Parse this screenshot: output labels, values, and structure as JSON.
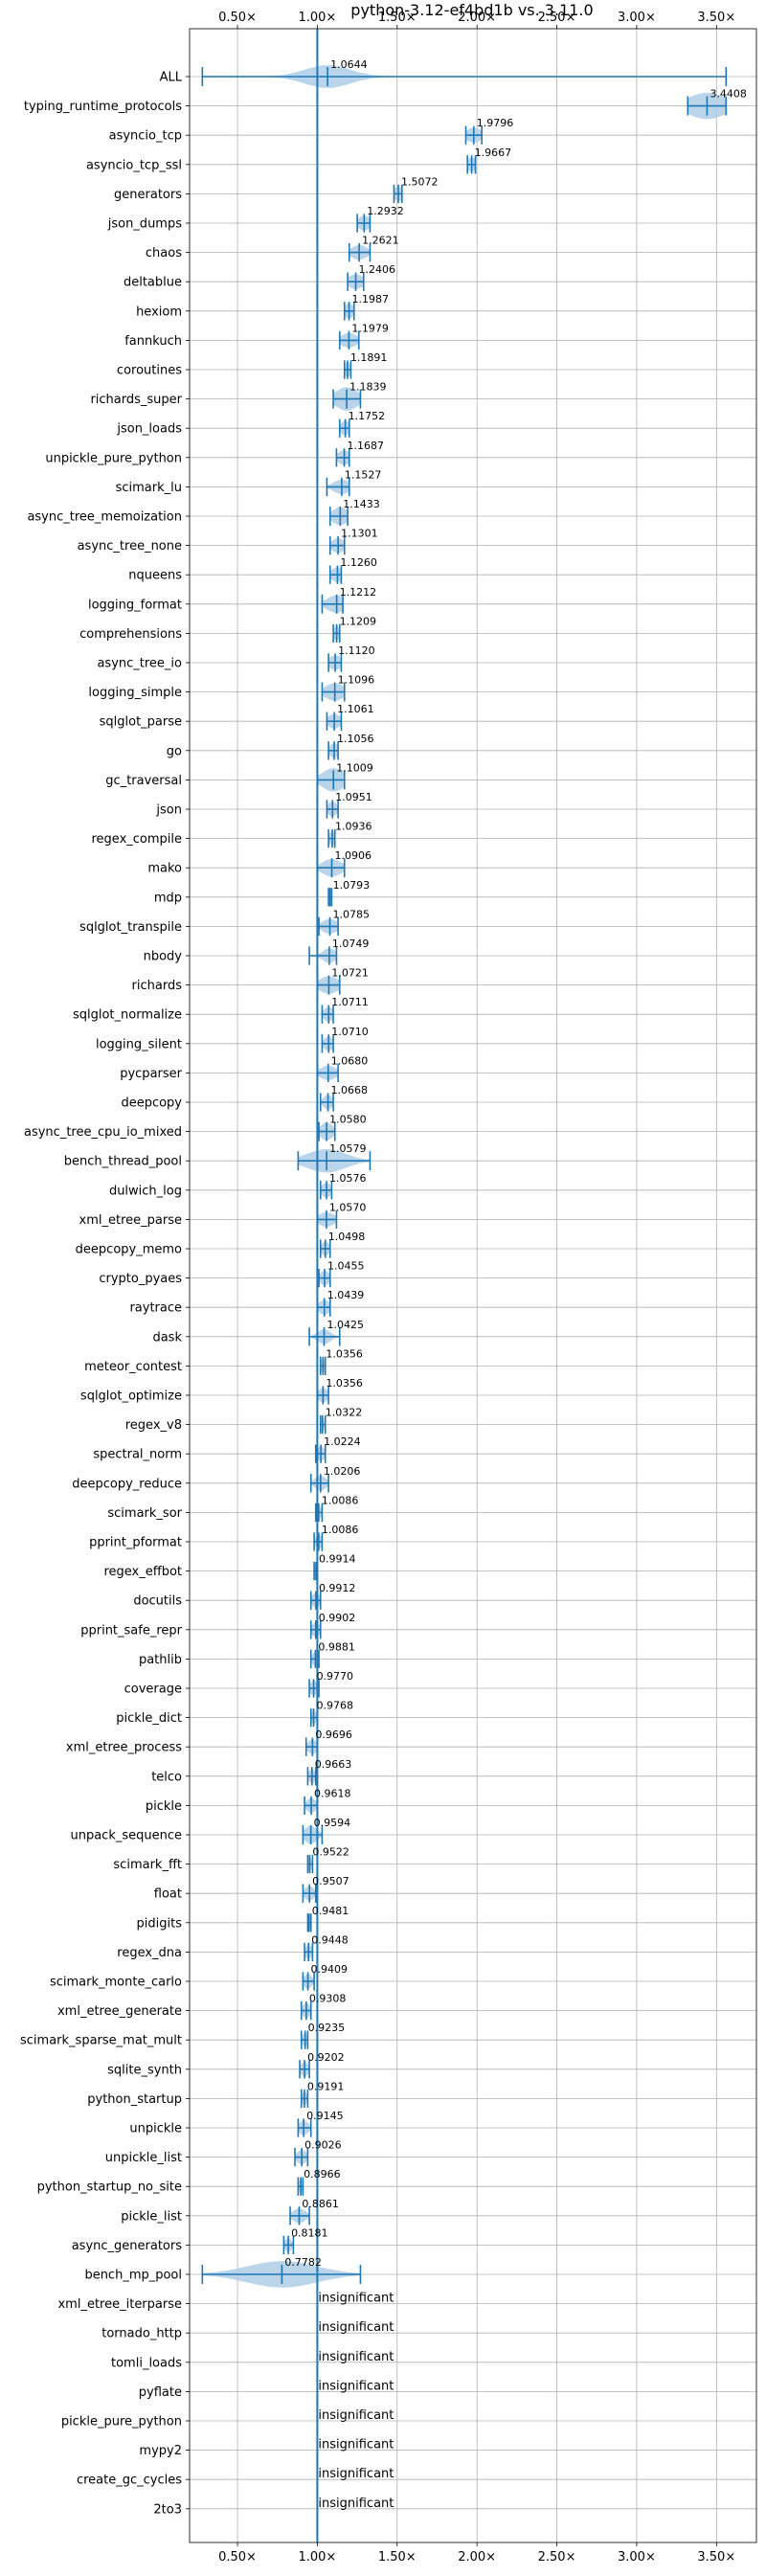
{
  "chart_data": {
    "type": "violin",
    "title": "python-3.12-ef4bd1b vs. 3.11.0",
    "xlabel": "",
    "ylabel": "",
    "xlim": [
      0.2,
      3.75
    ],
    "x_ticks": [
      0.5,
      1.0,
      1.5,
      2.0,
      2.5,
      3.0,
      3.5
    ],
    "x_tick_labels": [
      "0.50×",
      "1.00×",
      "1.50×",
      "2.00×",
      "2.50×",
      "3.00×",
      "3.50×"
    ],
    "x_ticks_top_and_bottom": true,
    "grid": true,
    "reference_line": 1.0,
    "color": "#1f77b4",
    "fill_color": "#aecde6",
    "insignificant_label": "insignificant",
    "rows": [
      {
        "name": "ALL",
        "value": 1.0644,
        "label": "1.0644",
        "min": 0.28,
        "max": 3.56,
        "spread": 0.14,
        "height": 0.8
      },
      {
        "name": "typing_runtime_protocols",
        "value": 3.4408,
        "label": "3.4408",
        "min": 3.32,
        "max": 3.56,
        "spread": 0.12,
        "height": 0.9
      },
      {
        "name": "asyncio_tcp",
        "value": 1.9796,
        "label": "1.9796",
        "min": 1.93,
        "max": 2.03,
        "spread": 0.05,
        "height": 0.5
      },
      {
        "name": "asyncio_tcp_ssl",
        "value": 1.9667,
        "label": "1.9667",
        "min": 1.94,
        "max": 1.99,
        "spread": 0.025,
        "height": 0.5
      },
      {
        "name": "generators",
        "value": 1.5072,
        "label": "1.5072",
        "min": 1.48,
        "max": 1.53,
        "spread": 0.03,
        "height": 0.5
      },
      {
        "name": "json_dumps",
        "value": 1.2932,
        "label": "1.2932",
        "min": 1.25,
        "max": 1.33,
        "spread": 0.04,
        "height": 0.5
      },
      {
        "name": "chaos",
        "value": 1.2621,
        "label": "1.2621",
        "min": 1.2,
        "max": 1.33,
        "spread": 0.05,
        "height": 0.5
      },
      {
        "name": "deltablue",
        "value": 1.2406,
        "label": "1.2406",
        "min": 1.19,
        "max": 1.29,
        "spread": 0.05,
        "height": 0.5
      },
      {
        "name": "hexiom",
        "value": 1.1987,
        "label": "1.1987",
        "min": 1.17,
        "max": 1.23,
        "spread": 0.03,
        "height": 0.5
      },
      {
        "name": "fannkuch",
        "value": 1.1979,
        "label": "1.1979",
        "min": 1.14,
        "max": 1.26,
        "spread": 0.05,
        "height": 0.5
      },
      {
        "name": "coroutines",
        "value": 1.1891,
        "label": "1.1891",
        "min": 1.17,
        "max": 1.21,
        "spread": 0.02,
        "height": 0.5
      },
      {
        "name": "richards_super",
        "value": 1.1839,
        "label": "1.1839",
        "min": 1.1,
        "max": 1.27,
        "spread": 0.07,
        "height": 0.8
      },
      {
        "name": "json_loads",
        "value": 1.1752,
        "label": "1.1752",
        "min": 1.14,
        "max": 1.2,
        "spread": 0.03,
        "height": 0.5
      },
      {
        "name": "unpickle_pure_python",
        "value": 1.1687,
        "label": "1.1687",
        "min": 1.12,
        "max": 1.2,
        "spread": 0.04,
        "height": 0.5
      },
      {
        "name": "scimark_lu",
        "value": 1.1527,
        "label": "1.1527",
        "min": 1.06,
        "max": 1.2,
        "spread": 0.05,
        "height": 0.5
      },
      {
        "name": "async_tree_memoization",
        "value": 1.1433,
        "label": "1.1433",
        "min": 1.08,
        "max": 1.19,
        "spread": 0.05,
        "height": 0.6
      },
      {
        "name": "async_tree_none",
        "value": 1.1301,
        "label": "1.1301",
        "min": 1.08,
        "max": 1.17,
        "spread": 0.04,
        "height": 0.5
      },
      {
        "name": "nqueens",
        "value": 1.126,
        "label": "1.1260",
        "min": 1.08,
        "max": 1.15,
        "spread": 0.04,
        "height": 0.5
      },
      {
        "name": "logging_format",
        "value": 1.1212,
        "label": "1.1212",
        "min": 1.03,
        "max": 1.16,
        "spread": 0.06,
        "height": 0.6
      },
      {
        "name": "comprehensions",
        "value": 1.1209,
        "label": "1.1209",
        "min": 1.1,
        "max": 1.14,
        "spread": 0.02,
        "height": 0.5
      },
      {
        "name": "async_tree_io",
        "value": 1.112,
        "label": "1.1120",
        "min": 1.07,
        "max": 1.15,
        "spread": 0.04,
        "height": 0.5
      },
      {
        "name": "logging_simple",
        "value": 1.1096,
        "label": "1.1096",
        "min": 1.03,
        "max": 1.17,
        "spread": 0.06,
        "height": 0.6
      },
      {
        "name": "sqlglot_parse",
        "value": 1.1061,
        "label": "1.1061",
        "min": 1.06,
        "max": 1.15,
        "spread": 0.04,
        "height": 0.5
      },
      {
        "name": "go",
        "value": 1.1056,
        "label": "1.1056",
        "min": 1.07,
        "max": 1.13,
        "spread": 0.03,
        "height": 0.5
      },
      {
        "name": "gc_traversal",
        "value": 1.1009,
        "label": "1.1009",
        "min": 1.0,
        "max": 1.17,
        "spread": 0.07,
        "height": 0.8
      },
      {
        "name": "json",
        "value": 1.0951,
        "label": "1.0951",
        "min": 1.06,
        "max": 1.13,
        "spread": 0.03,
        "height": 0.5
      },
      {
        "name": "regex_compile",
        "value": 1.0936,
        "label": "1.0936",
        "min": 1.07,
        "max": 1.11,
        "spread": 0.02,
        "height": 0.5
      },
      {
        "name": "mako",
        "value": 1.0906,
        "label": "1.0906",
        "min": 1.0,
        "max": 1.17,
        "spread": 0.06,
        "height": 0.6
      },
      {
        "name": "mdp",
        "value": 1.0793,
        "label": "1.0793",
        "min": 1.07,
        "max": 1.09,
        "spread": 0.012,
        "height": 0.5
      },
      {
        "name": "sqlglot_transpile",
        "value": 1.0785,
        "label": "1.0785",
        "min": 1.01,
        "max": 1.13,
        "spread": 0.05,
        "height": 0.5
      },
      {
        "name": "nbody",
        "value": 1.0749,
        "label": "1.0749",
        "min": 0.95,
        "max": 1.12,
        "spread": 0.04,
        "height": 0.5
      },
      {
        "name": "richards",
        "value": 1.0721,
        "label": "1.0721",
        "min": 1.0,
        "max": 1.14,
        "spread": 0.06,
        "height": 0.6
      },
      {
        "name": "sqlglot_normalize",
        "value": 1.0711,
        "label": "1.0711",
        "min": 1.03,
        "max": 1.1,
        "spread": 0.03,
        "height": 0.5
      },
      {
        "name": "logging_silent",
        "value": 1.071,
        "label": "1.0710",
        "min": 1.03,
        "max": 1.1,
        "spread": 0.03,
        "height": 0.5
      },
      {
        "name": "pycparser",
        "value": 1.068,
        "label": "1.0680",
        "min": 1.0,
        "max": 1.13,
        "spread": 0.05,
        "height": 0.5
      },
      {
        "name": "deepcopy",
        "value": 1.0668,
        "label": "1.0668",
        "min": 1.02,
        "max": 1.1,
        "spread": 0.03,
        "height": 0.5
      },
      {
        "name": "async_tree_cpu_io_mixed",
        "value": 1.058,
        "label": "1.0580",
        "min": 1.01,
        "max": 1.11,
        "spread": 0.04,
        "height": 0.6
      },
      {
        "name": "bench_thread_pool",
        "value": 1.0579,
        "label": "1.0579",
        "min": 0.88,
        "max": 1.33,
        "spread": 0.12,
        "height": 0.8
      },
      {
        "name": "dulwich_log",
        "value": 1.0576,
        "label": "1.0576",
        "min": 1.02,
        "max": 1.09,
        "spread": 0.03,
        "height": 0.5
      },
      {
        "name": "xml_etree_parse",
        "value": 1.057,
        "label": "1.0570",
        "min": 1.0,
        "max": 1.12,
        "spread": 0.05,
        "height": 0.5
      },
      {
        "name": "deepcopy_memo",
        "value": 1.0498,
        "label": "1.0498",
        "min": 1.02,
        "max": 1.08,
        "spread": 0.025,
        "height": 0.5
      },
      {
        "name": "crypto_pyaes",
        "value": 1.0455,
        "label": "1.0455",
        "min": 1.01,
        "max": 1.08,
        "spread": 0.03,
        "height": 0.5
      },
      {
        "name": "raytrace",
        "value": 1.0439,
        "label": "1.0439",
        "min": 1.0,
        "max": 1.08,
        "spread": 0.035,
        "height": 0.5
      },
      {
        "name": "dask",
        "value": 1.0425,
        "label": "1.0425",
        "min": 0.95,
        "max": 1.14,
        "spread": 0.04,
        "height": 0.5
      },
      {
        "name": "meteor_contest",
        "value": 1.0356,
        "label": "1.0356",
        "min": 1.02,
        "max": 1.05,
        "spread": 0.015,
        "height": 0.5
      },
      {
        "name": "sqlglot_optimize",
        "value": 1.0356,
        "label": "1.0356",
        "min": 1.0,
        "max": 1.07,
        "spread": 0.03,
        "height": 0.5
      },
      {
        "name": "regex_v8",
        "value": 1.0322,
        "label": "1.0322",
        "min": 1.02,
        "max": 1.05,
        "spread": 0.012,
        "height": 0.5
      },
      {
        "name": "spectral_norm",
        "value": 1.0224,
        "label": "1.0224",
        "min": 0.99,
        "max": 1.05,
        "spread": 0.025,
        "height": 0.5
      },
      {
        "name": "deepcopy_reduce",
        "value": 1.0206,
        "label": "1.0206",
        "min": 0.96,
        "max": 1.07,
        "spread": 0.035,
        "height": 0.5
      },
      {
        "name": "scimark_sor",
        "value": 1.0086,
        "label": "1.0086",
        "min": 0.99,
        "max": 1.03,
        "spread": 0.015,
        "height": 0.5
      },
      {
        "name": "pprint_pformat",
        "value": 1.0086,
        "label": "1.0086",
        "min": 0.98,
        "max": 1.03,
        "spread": 0.02,
        "height": 0.5
      },
      {
        "name": "regex_effbot",
        "value": 0.9914,
        "label": "0.9914",
        "min": 0.98,
        "max": 1.0,
        "spread": 0.01,
        "height": 0.5
      },
      {
        "name": "docutils",
        "value": 0.9912,
        "label": "0.9912",
        "min": 0.96,
        "max": 1.02,
        "spread": 0.025,
        "height": 0.5
      },
      {
        "name": "pprint_safe_repr",
        "value": 0.9902,
        "label": "0.9902",
        "min": 0.96,
        "max": 1.02,
        "spread": 0.025,
        "height": 0.5
      },
      {
        "name": "pathlib",
        "value": 0.9881,
        "label": "0.9881",
        "min": 0.96,
        "max": 1.01,
        "spread": 0.02,
        "height": 0.5
      },
      {
        "name": "coverage",
        "value": 0.977,
        "label": "0.9770",
        "min": 0.95,
        "max": 1.01,
        "spread": 0.025,
        "height": 0.5
      },
      {
        "name": "pickle_dict",
        "value": 0.9768,
        "label": "0.9768",
        "min": 0.96,
        "max": 1.0,
        "spread": 0.015,
        "height": 0.5
      },
      {
        "name": "xml_etree_process",
        "value": 0.9696,
        "label": "0.9696",
        "min": 0.93,
        "max": 1.0,
        "spread": 0.03,
        "height": 0.5
      },
      {
        "name": "telco",
        "value": 0.9663,
        "label": "0.9663",
        "min": 0.94,
        "max": 0.99,
        "spread": 0.02,
        "height": 0.5
      },
      {
        "name": "pickle",
        "value": 0.9618,
        "label": "0.9618",
        "min": 0.92,
        "max": 1.0,
        "spread": 0.03,
        "height": 0.5
      },
      {
        "name": "unpack_sequence",
        "value": 0.9594,
        "label": "0.9594",
        "min": 0.91,
        "max": 1.03,
        "spread": 0.04,
        "height": 0.6
      },
      {
        "name": "scimark_fft",
        "value": 0.9522,
        "label": "0.9522",
        "min": 0.94,
        "max": 0.97,
        "spread": 0.012,
        "height": 0.5
      },
      {
        "name": "float",
        "value": 0.9507,
        "label": "0.9507",
        "min": 0.91,
        "max": 0.99,
        "spread": 0.03,
        "height": 0.5
      },
      {
        "name": "pidigits",
        "value": 0.9481,
        "label": "0.9481",
        "min": 0.94,
        "max": 0.96,
        "spread": 0.008,
        "height": 0.5
      },
      {
        "name": "regex_dna",
        "value": 0.9448,
        "label": "0.9448",
        "min": 0.92,
        "max": 0.97,
        "spread": 0.02,
        "height": 0.5
      },
      {
        "name": "scimark_monte_carlo",
        "value": 0.9409,
        "label": "0.9409",
        "min": 0.91,
        "max": 0.98,
        "spread": 0.025,
        "height": 0.5
      },
      {
        "name": "xml_etree_generate",
        "value": 0.9308,
        "label": "0.9308",
        "min": 0.9,
        "max": 0.96,
        "spread": 0.025,
        "height": 0.5
      },
      {
        "name": "scimark_sparse_mat_mult",
        "value": 0.9235,
        "label": "0.9235",
        "min": 0.9,
        "max": 0.94,
        "spread": 0.015,
        "height": 0.5
      },
      {
        "name": "sqlite_synth",
        "value": 0.9202,
        "label": "0.9202",
        "min": 0.89,
        "max": 0.95,
        "spread": 0.025,
        "height": 0.5
      },
      {
        "name": "python_startup",
        "value": 0.9191,
        "label": "0.9191",
        "min": 0.9,
        "max": 0.94,
        "spread": 0.015,
        "height": 0.5
      },
      {
        "name": "unpickle",
        "value": 0.9145,
        "label": "0.9145",
        "min": 0.88,
        "max": 0.96,
        "spread": 0.03,
        "height": 0.5
      },
      {
        "name": "unpickle_list",
        "value": 0.9026,
        "label": "0.9026",
        "min": 0.86,
        "max": 0.94,
        "spread": 0.03,
        "height": 0.5
      },
      {
        "name": "python_startup_no_site",
        "value": 0.8966,
        "label": "0.8966",
        "min": 0.88,
        "max": 0.91,
        "spread": 0.012,
        "height": 0.5
      },
      {
        "name": "pickle_list",
        "value": 0.8861,
        "label": "0.8861",
        "min": 0.83,
        "max": 0.95,
        "spread": 0.04,
        "height": 0.5
      },
      {
        "name": "async_generators",
        "value": 0.8181,
        "label": "0.8181",
        "min": 0.79,
        "max": 0.85,
        "spread": 0.02,
        "height": 0.5
      },
      {
        "name": "bench_mp_pool",
        "value": 0.7782,
        "label": "0.7782",
        "min": 0.28,
        "max": 1.27,
        "spread": 0.22,
        "height": 0.9
      },
      {
        "name": "xml_etree_iterparse",
        "insignificant": true
      },
      {
        "name": "tornado_http",
        "insignificant": true
      },
      {
        "name": "tomli_loads",
        "insignificant": true
      },
      {
        "name": "pyflate",
        "insignificant": true
      },
      {
        "name": "pickle_pure_python",
        "insignificant": true
      },
      {
        "name": "mypy2",
        "insignificant": true
      },
      {
        "name": "create_gc_cycles",
        "insignificant": true
      },
      {
        "name": "2to3",
        "insignificant": true
      }
    ]
  }
}
